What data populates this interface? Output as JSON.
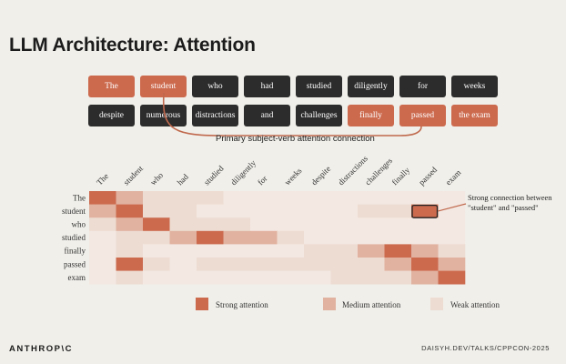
{
  "slide": {
    "title": "LLM Architecture: Attention",
    "caption": "Primary subject-verb attention connection",
    "annotation_line1": "Strong connection between",
    "annotation_line2": "\"student\" and \"passed\"",
    "footer_left": "ANTHROP\\C",
    "footer_right": "DAISYH.DEV/TALKS/CPPCON-2025"
  },
  "tokens_row1": [
    {
      "text": "The",
      "highlight": true
    },
    {
      "text": "student",
      "highlight": true
    },
    {
      "text": "who",
      "highlight": false
    },
    {
      "text": "had",
      "highlight": false
    },
    {
      "text": "studied",
      "highlight": false
    },
    {
      "text": "diligently",
      "highlight": false
    },
    {
      "text": "for",
      "highlight": false
    },
    {
      "text": "weeks",
      "highlight": false
    }
  ],
  "tokens_row2": [
    {
      "text": "despite",
      "highlight": false
    },
    {
      "text": "numerous",
      "highlight": false
    },
    {
      "text": "distractions",
      "highlight": false
    },
    {
      "text": "and",
      "highlight": false
    },
    {
      "text": "challenges",
      "highlight": false
    },
    {
      "text": "finally",
      "highlight": true
    },
    {
      "text": "passed",
      "highlight": true
    },
    {
      "text": "the exam",
      "highlight": true
    }
  ],
  "chart_data": {
    "type": "heatmap",
    "x_labels": [
      "The",
      "student",
      "who",
      "had",
      "studied",
      "diligently",
      "for",
      "weeks",
      "despite",
      "distractions",
      "challenges",
      "finally",
      "passed",
      "exam"
    ],
    "y_labels": [
      "The",
      "student",
      "who",
      "studied",
      "finally",
      "passed",
      "exam"
    ],
    "values": [
      [
        3,
        2,
        1,
        1,
        1,
        0,
        0,
        0,
        0,
        0,
        0,
        0,
        0,
        0
      ],
      [
        2,
        3,
        1,
        1,
        0,
        0,
        0,
        0,
        0,
        0,
        1,
        1,
        3,
        0
      ],
      [
        1,
        2,
        3,
        1,
        1,
        1,
        0,
        0,
        0,
        0,
        0,
        0,
        0,
        0
      ],
      [
        0,
        1,
        1,
        2,
        3,
        2,
        2,
        1,
        0,
        0,
        0,
        0,
        0,
        0
      ],
      [
        0,
        1,
        0,
        0,
        0,
        0,
        0,
        0,
        1,
        1,
        2,
        3,
        2,
        1
      ],
      [
        0,
        3,
        1,
        0,
        1,
        1,
        1,
        1,
        1,
        1,
        1,
        2,
        3,
        2
      ],
      [
        0,
        1,
        0,
        0,
        0,
        0,
        0,
        0,
        0,
        1,
        1,
        1,
        2,
        3
      ]
    ],
    "levels": {
      "0": "none",
      "1": "weak",
      "2": "medium",
      "3": "strong"
    },
    "highlight_cell": {
      "row": "student",
      "col": "passed"
    },
    "legend": [
      {
        "label": "Strong attention",
        "color": "#cc6a4e"
      },
      {
        "label": "Medium attention",
        "color": "#e1b2a0"
      },
      {
        "label": "Weak attention",
        "color": "#eddcd2"
      }
    ]
  }
}
